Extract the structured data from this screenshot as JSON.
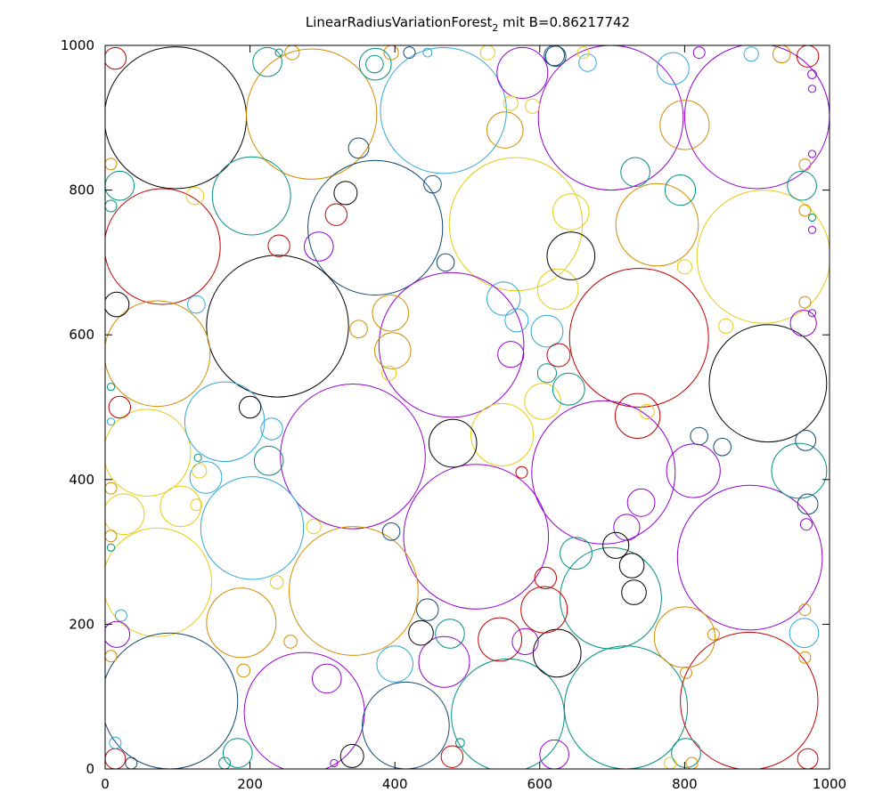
{
  "chart_data": {
    "type": "scatter",
    "title": "LinearRadiusVariationForest",
    "title_subscript": "2",
    "title_suffix": " mit B=0.86217742",
    "xlim": [
      0,
      1000
    ],
    "ylim": [
      0,
      1000
    ],
    "x_ticks": [
      "0",
      "200",
      "400",
      "600",
      "800",
      "1000"
    ],
    "y_ticks": [
      "0",
      "200",
      "400",
      "600",
      "800",
      "1000"
    ],
    "grid": false,
    "colors": {
      "black": "#000000",
      "red": "#c00000",
      "orange": "#d28c00",
      "purple": "#9400d3",
      "teal": "#009080",
      "cyan": "#30a8d8",
      "navy": "#104870",
      "yellow": "#e6cc10"
    },
    "circles": [
      {
        "x": 97,
        "y": 900,
        "r": 98,
        "c": "black"
      },
      {
        "x": 285,
        "y": 905,
        "r": 90,
        "c": "orange"
      },
      {
        "x": 467,
        "y": 910,
        "r": 87,
        "c": "cyan"
      },
      {
        "x": 698,
        "y": 900,
        "r": 100,
        "c": "purple"
      },
      {
        "x": 900,
        "y": 902,
        "r": 100,
        "c": "purple"
      },
      {
        "x": 567,
        "y": 753,
        "r": 92,
        "c": "yellow"
      },
      {
        "x": 373,
        "y": 748,
        "r": 93,
        "c": "navy"
      },
      {
        "x": 79,
        "y": 722,
        "r": 80,
        "c": "red"
      },
      {
        "x": 202,
        "y": 792,
        "r": 54,
        "c": "teal"
      },
      {
        "x": 762,
        "y": 752,
        "r": 57,
        "c": "orange"
      },
      {
        "x": 909,
        "y": 708,
        "r": 92,
        "c": "yellow"
      },
      {
        "x": 238,
        "y": 612,
        "r": 98,
        "c": "black"
      },
      {
        "x": 478,
        "y": 586,
        "r": 100,
        "c": "purple"
      },
      {
        "x": 737,
        "y": 596,
        "r": 96,
        "c": "red"
      },
      {
        "x": 915,
        "y": 533,
        "r": 81,
        "c": "black"
      },
      {
        "x": 72,
        "y": 574,
        "r": 73,
        "c": "orange"
      },
      {
        "x": 342,
        "y": 432,
        "r": 100,
        "c": "purple"
      },
      {
        "x": 688,
        "y": 410,
        "r": 99,
        "c": "purple"
      },
      {
        "x": 58,
        "y": 437,
        "r": 60,
        "c": "yellow"
      },
      {
        "x": 165,
        "y": 480,
        "r": 55,
        "c": "cyan"
      },
      {
        "x": 512,
        "y": 321,
        "r": 100,
        "c": "purple"
      },
      {
        "x": 203,
        "y": 333,
        "r": 71,
        "c": "cyan"
      },
      {
        "x": 72,
        "y": 258,
        "r": 75,
        "c": "yellow"
      },
      {
        "x": 343,
        "y": 246,
        "r": 89,
        "c": "orange"
      },
      {
        "x": 890,
        "y": 292,
        "r": 100,
        "c": "purple"
      },
      {
        "x": 698,
        "y": 236,
        "r": 70,
        "c": "teal"
      },
      {
        "x": 188,
        "y": 202,
        "r": 48,
        "c": "orange"
      },
      {
        "x": 89,
        "y": 94,
        "r": 94,
        "c": "navy"
      },
      {
        "x": 275,
        "y": 78,
        "r": 83,
        "c": "purple"
      },
      {
        "x": 415,
        "y": 60,
        "r": 60,
        "c": "navy"
      },
      {
        "x": 556,
        "y": 74,
        "r": 78,
        "c": "teal"
      },
      {
        "x": 719,
        "y": 85,
        "r": 85,
        "c": "teal"
      },
      {
        "x": 889,
        "y": 94,
        "r": 95,
        "c": "red"
      },
      {
        "x": 548,
        "y": 462,
        "r": 43,
        "c": "yellow"
      },
      {
        "x": 480,
        "y": 450,
        "r": 33,
        "c": "black"
      },
      {
        "x": 812,
        "y": 412,
        "r": 37,
        "c": "purple"
      },
      {
        "x": 958,
        "y": 412,
        "r": 38,
        "c": "teal"
      },
      {
        "x": 800,
        "y": 182,
        "r": 42,
        "c": "orange"
      },
      {
        "x": 545,
        "y": 179,
        "r": 30,
        "c": "red"
      },
      {
        "x": 624,
        "y": 160,
        "r": 33,
        "c": "black"
      },
      {
        "x": 606,
        "y": 220,
        "r": 32,
        "c": "red"
      },
      {
        "x": 468,
        "y": 148,
        "r": 35,
        "c": "purple"
      },
      {
        "x": 394,
        "y": 630,
        "r": 25,
        "c": "orange"
      },
      {
        "x": 397,
        "y": 578,
        "r": 25,
        "c": "orange"
      },
      {
        "x": 625,
        "y": 663,
        "r": 28,
        "c": "yellow"
      },
      {
        "x": 643,
        "y": 709,
        "r": 33,
        "c": "black"
      },
      {
        "x": 552,
        "y": 883,
        "r": 25,
        "c": "orange"
      },
      {
        "x": 576,
        "y": 962,
        "r": 35,
        "c": "purple"
      },
      {
        "x": 373,
        "y": 974,
        "r": 22,
        "c": "teal"
      },
      {
        "x": 224,
        "y": 977,
        "r": 20,
        "c": "teal"
      },
      {
        "x": 784,
        "y": 968,
        "r": 22,
        "c": "cyan"
      },
      {
        "x": 800,
        "y": 890,
        "r": 34,
        "c": "orange"
      },
      {
        "x": 794,
        "y": 800,
        "r": 21,
        "c": "teal"
      },
      {
        "x": 732,
        "y": 825,
        "r": 20,
        "c": "teal"
      },
      {
        "x": 643,
        "y": 770,
        "r": 25,
        "c": "yellow"
      },
      {
        "x": 962,
        "y": 806,
        "r": 20,
        "c": "teal"
      },
      {
        "x": 20,
        "y": 806,
        "r": 20,
        "c": "teal"
      },
      {
        "x": 332,
        "y": 796,
        "r": 16,
        "c": "black"
      },
      {
        "x": 319,
        "y": 766,
        "r": 15,
        "c": "red"
      },
      {
        "x": 295,
        "y": 722,
        "r": 20,
        "c": "purple"
      },
      {
        "x": 240,
        "y": 723,
        "r": 15,
        "c": "red"
      },
      {
        "x": 550,
        "y": 650,
        "r": 23,
        "c": "cyan"
      },
      {
        "x": 568,
        "y": 620,
        "r": 16,
        "c": "cyan"
      },
      {
        "x": 610,
        "y": 605,
        "r": 22,
        "c": "cyan"
      },
      {
        "x": 560,
        "y": 573,
        "r": 18,
        "c": "purple"
      },
      {
        "x": 604,
        "y": 508,
        "r": 25,
        "c": "yellow"
      },
      {
        "x": 640,
        "y": 525,
        "r": 22,
        "c": "teal"
      },
      {
        "x": 610,
        "y": 547,
        "r": 13,
        "c": "teal"
      },
      {
        "x": 626,
        "y": 572,
        "r": 16,
        "c": "red"
      },
      {
        "x": 200,
        "y": 500,
        "r": 15,
        "c": "black"
      },
      {
        "x": 230,
        "y": 470,
        "r": 15,
        "c": "cyan"
      },
      {
        "x": 226,
        "y": 426,
        "r": 20,
        "c": "teal"
      },
      {
        "x": 139,
        "y": 403,
        "r": 22,
        "c": "cyan"
      },
      {
        "x": 104,
        "y": 363,
        "r": 28,
        "c": "yellow"
      },
      {
        "x": 26,
        "y": 352,
        "r": 28,
        "c": "yellow"
      },
      {
        "x": 20,
        "y": 500,
        "r": 15,
        "c": "red"
      },
      {
        "x": 16,
        "y": 642,
        "r": 17,
        "c": "black"
      },
      {
        "x": 126,
        "y": 642,
        "r": 12,
        "c": "cyan"
      },
      {
        "x": 735,
        "y": 488,
        "r": 31,
        "c": "red"
      },
      {
        "x": 852,
        "y": 445,
        "r": 12,
        "c": "navy"
      },
      {
        "x": 820,
        "y": 460,
        "r": 12,
        "c": "navy"
      },
      {
        "x": 740,
        "y": 368,
        "r": 19,
        "c": "purple"
      },
      {
        "x": 720,
        "y": 334,
        "r": 18,
        "c": "purple"
      },
      {
        "x": 650,
        "y": 298,
        "r": 22,
        "c": "teal"
      },
      {
        "x": 705,
        "y": 309,
        "r": 18,
        "c": "black"
      },
      {
        "x": 727,
        "y": 281,
        "r": 17,
        "c": "black"
      },
      {
        "x": 730,
        "y": 244,
        "r": 17,
        "c": "black"
      },
      {
        "x": 608,
        "y": 264,
        "r": 15,
        "c": "red"
      },
      {
        "x": 476,
        "y": 187,
        "r": 20,
        "c": "teal"
      },
      {
        "x": 445,
        "y": 220,
        "r": 15,
        "c": "navy"
      },
      {
        "x": 436,
        "y": 188,
        "r": 17,
        "c": "black"
      },
      {
        "x": 400,
        "y": 145,
        "r": 25,
        "c": "cyan"
      },
      {
        "x": 580,
        "y": 176,
        "r": 18,
        "c": "purple"
      },
      {
        "x": 306,
        "y": 125,
        "r": 20,
        "c": "purple"
      },
      {
        "x": 341,
        "y": 18,
        "r": 16,
        "c": "black"
      },
      {
        "x": 479,
        "y": 17,
        "r": 15,
        "c": "red"
      },
      {
        "x": 620,
        "y": 20,
        "r": 20,
        "c": "purple"
      },
      {
        "x": 802,
        "y": 22,
        "r": 20,
        "c": "teal"
      },
      {
        "x": 970,
        "y": 14,
        "r": 14,
        "c": "red"
      },
      {
        "x": 14,
        "y": 14,
        "r": 14,
        "c": "red"
      },
      {
        "x": 183,
        "y": 22,
        "r": 20,
        "c": "teal"
      },
      {
        "x": 16,
        "y": 186,
        "r": 18,
        "c": "purple"
      },
      {
        "x": 965,
        "y": 188,
        "r": 20,
        "c": "cyan"
      },
      {
        "x": 970,
        "y": 366,
        "r": 14,
        "c": "navy"
      },
      {
        "x": 967,
        "y": 454,
        "r": 14,
        "c": "navy"
      },
      {
        "x": 964,
        "y": 616,
        "r": 18,
        "c": "purple"
      },
      {
        "x": 970,
        "y": 985,
        "r": 15,
        "c": "red"
      },
      {
        "x": 934,
        "y": 988,
        "r": 12,
        "c": "orange"
      },
      {
        "x": 14,
        "y": 982,
        "r": 15,
        "c": "red"
      },
      {
        "x": 372,
        "y": 974,
        "r": 12,
        "c": "teal"
      },
      {
        "x": 620,
        "y": 986,
        "r": 14,
        "c": "navy"
      },
      {
        "x": 666,
        "y": 976,
        "r": 12,
        "c": "cyan"
      },
      {
        "x": 350,
        "y": 608,
        "r": 12,
        "c": "orange"
      },
      {
        "x": 452,
        "y": 808,
        "r": 12,
        "c": "navy"
      },
      {
        "x": 470,
        "y": 700,
        "r": 12,
        "c": "navy"
      },
      {
        "x": 350,
        "y": 858,
        "r": 14,
        "c": "navy"
      },
      {
        "x": 560,
        "y": 920,
        "r": 10,
        "c": "yellow"
      },
      {
        "x": 590,
        "y": 916,
        "r": 10,
        "c": "yellow"
      },
      {
        "x": 288,
        "y": 335,
        "r": 10,
        "c": "yellow"
      },
      {
        "x": 237,
        "y": 258,
        "r": 9,
        "c": "yellow"
      },
      {
        "x": 256,
        "y": 176,
        "r": 9,
        "c": "orange"
      },
      {
        "x": 191,
        "y": 136,
        "r": 9,
        "c": "orange"
      },
      {
        "x": 8,
        "y": 156,
        "r": 8,
        "c": "orange"
      },
      {
        "x": 395,
        "y": 328,
        "r": 12,
        "c": "navy"
      },
      {
        "x": 575,
        "y": 410,
        "r": 8,
        "c": "red"
      },
      {
        "x": 748,
        "y": 494,
        "r": 10,
        "c": "yellow"
      },
      {
        "x": 857,
        "y": 612,
        "r": 10,
        "c": "yellow"
      },
      {
        "x": 800,
        "y": 694,
        "r": 10,
        "c": "yellow"
      },
      {
        "x": 124,
        "y": 792,
        "r": 12,
        "c": "yellow"
      },
      {
        "x": 8,
        "y": 836,
        "r": 8,
        "c": "orange"
      },
      {
        "x": 8,
        "y": 778,
        "r": 8,
        "c": "teal"
      },
      {
        "x": 126,
        "y": 365,
        "r": 8,
        "c": "yellow"
      },
      {
        "x": 128,
        "y": 430,
        "r": 5,
        "c": "teal"
      },
      {
        "x": 130,
        "y": 412,
        "r": 10,
        "c": "yellow"
      },
      {
        "x": 392,
        "y": 547,
        "r": 10,
        "c": "yellow"
      },
      {
        "x": 840,
        "y": 186,
        "r": 8,
        "c": "orange"
      },
      {
        "x": 802,
        "y": 133,
        "r": 8,
        "c": "orange"
      },
      {
        "x": 966,
        "y": 154,
        "r": 8,
        "c": "orange"
      },
      {
        "x": 966,
        "y": 220,
        "r": 8,
        "c": "orange"
      },
      {
        "x": 966,
        "y": 645,
        "r": 8,
        "c": "orange"
      },
      {
        "x": 966,
        "y": 835,
        "r": 8,
        "c": "orange"
      },
      {
        "x": 966,
        "y": 772,
        "r": 8,
        "c": "orange"
      },
      {
        "x": 240,
        "y": 990,
        "r": 5,
        "c": "teal"
      },
      {
        "x": 258,
        "y": 990,
        "r": 10,
        "c": "orange"
      },
      {
        "x": 395,
        "y": 990,
        "r": 10,
        "c": "orange"
      },
      {
        "x": 420,
        "y": 990,
        "r": 8,
        "c": "navy"
      },
      {
        "x": 445,
        "y": 990,
        "r": 6,
        "c": "cyan"
      },
      {
        "x": 528,
        "y": 990,
        "r": 10,
        "c": "yellow"
      },
      {
        "x": 622,
        "y": 985,
        "r": 14,
        "c": "navy"
      },
      {
        "x": 660,
        "y": 990,
        "r": 8,
        "c": "yellow"
      },
      {
        "x": 820,
        "y": 990,
        "r": 8,
        "c": "purple"
      },
      {
        "x": 892,
        "y": 988,
        "r": 10,
        "c": "cyan"
      },
      {
        "x": 22,
        "y": 212,
        "r": 8,
        "c": "cyan"
      },
      {
        "x": 14,
        "y": 36,
        "r": 8,
        "c": "cyan"
      },
      {
        "x": 36,
        "y": 8,
        "r": 8,
        "c": "navy"
      },
      {
        "x": 165,
        "y": 8,
        "r": 8,
        "c": "teal"
      },
      {
        "x": 316,
        "y": 8,
        "r": 5,
        "c": "purple"
      },
      {
        "x": 490,
        "y": 36,
        "r": 6,
        "c": "teal"
      },
      {
        "x": 810,
        "y": 8,
        "r": 8,
        "c": "orange"
      },
      {
        "x": 780,
        "y": 8,
        "r": 8,
        "c": "yellow"
      },
      {
        "x": 8,
        "y": 322,
        "r": 8,
        "c": "orange"
      },
      {
        "x": 8,
        "y": 388,
        "r": 8,
        "c": "orange"
      },
      {
        "x": 8,
        "y": 528,
        "r": 5,
        "c": "teal"
      },
      {
        "x": 8,
        "y": 480,
        "r": 5,
        "c": "cyan"
      },
      {
        "x": 8,
        "y": 306,
        "r": 5,
        "c": "teal"
      },
      {
        "x": 968,
        "y": 338,
        "r": 8,
        "c": "purple"
      },
      {
        "x": 976,
        "y": 960,
        "r": 6,
        "c": "purple"
      },
      {
        "x": 976,
        "y": 940,
        "r": 5,
        "c": "purple"
      },
      {
        "x": 976,
        "y": 850,
        "r": 5,
        "c": "purple"
      },
      {
        "x": 976,
        "y": 745,
        "r": 5,
        "c": "purple"
      },
      {
        "x": 976,
        "y": 762,
        "r": 5,
        "c": "teal"
      },
      {
        "x": 976,
        "y": 630,
        "r": 5,
        "c": "purple"
      }
    ]
  }
}
